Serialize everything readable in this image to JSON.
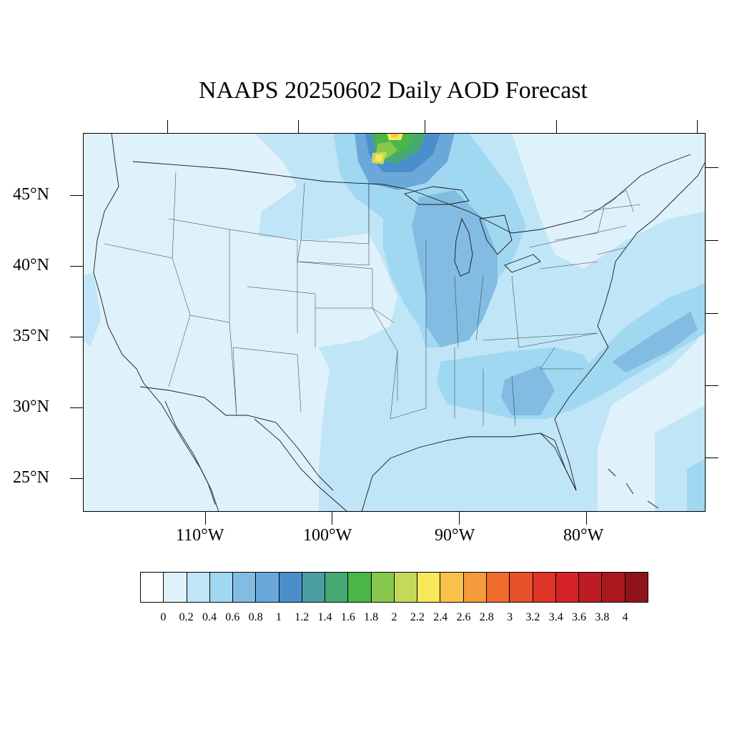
{
  "title": "NAAPS 20250602 Daily AOD Forecast",
  "map": {
    "region": "Contiguous United States",
    "lat_range": [
      22.5,
      49.5
    ],
    "lon_range": [
      -119.5,
      -70.5
    ],
    "lat_labels": [
      "45°N",
      "40°N",
      "35°N",
      "30°N",
      "25°N"
    ],
    "lon_labels": [
      "110°W",
      "100°W",
      "90°W",
      "80°W"
    ]
  },
  "colorbar": {
    "labels": [
      "0",
      "0.2",
      "0.4",
      "0.6",
      "0.8",
      "1",
      "1.2",
      "1.4",
      "1.6",
      "1.8",
      "2",
      "2.2",
      "2.4",
      "2.6",
      "2.8",
      "3",
      "3.2",
      "3.4",
      "3.6",
      "3.8",
      "4"
    ],
    "colors": [
      "#ffffff",
      "#dff1fa",
      "#bfe5f7",
      "#a0d8f2",
      "#82bce2",
      "#6aa8da",
      "#4a8fcc",
      "#4a9ea1",
      "#46a873",
      "#4bb648",
      "#86c84c",
      "#c5d85a",
      "#f8e85a",
      "#f8c24a",
      "#f59b3c",
      "#f06c2c",
      "#e6502a",
      "#e03528",
      "#d42228",
      "#bc1c22",
      "#a8181d",
      "#8f1419"
    ]
  },
  "chart_data": {
    "type": "heatmap",
    "title": "NAAPS 20250602 Daily AOD Forecast",
    "xlabel": "",
    "ylabel": "",
    "x_ticks": [
      "110°W",
      "100°W",
      "90°W",
      "80°W"
    ],
    "y_ticks": [
      "45°N",
      "40°N",
      "35°N",
      "30°N",
      "25°N"
    ],
    "colorbar_ticks": [
      0,
      0.2,
      0.4,
      0.6,
      0.8,
      1,
      1.2,
      1.4,
      1.6,
      1.8,
      2,
      2.2,
      2.4,
      2.6,
      2.8,
      3,
      3.2,
      3.4,
      3.6,
      3.8,
      4
    ],
    "regions": [
      {
        "name": "background",
        "value": 0.1
      },
      {
        "name": "upper-midwest-plume",
        "value": 0.5
      },
      {
        "name": "great-lakes-midwest",
        "value": 0.6
      },
      {
        "name": "ohio-valley",
        "value": 0.7
      },
      {
        "name": "southeast",
        "value": 0.6
      },
      {
        "name": "atlantic-offshore-band",
        "value": 0.7
      },
      {
        "name": "gulf-coast",
        "value": 0.3
      },
      {
        "name": "canada-smoke-core",
        "value": 1.5
      },
      {
        "name": "canada-smoke-peak",
        "value": 2.3
      }
    ]
  }
}
